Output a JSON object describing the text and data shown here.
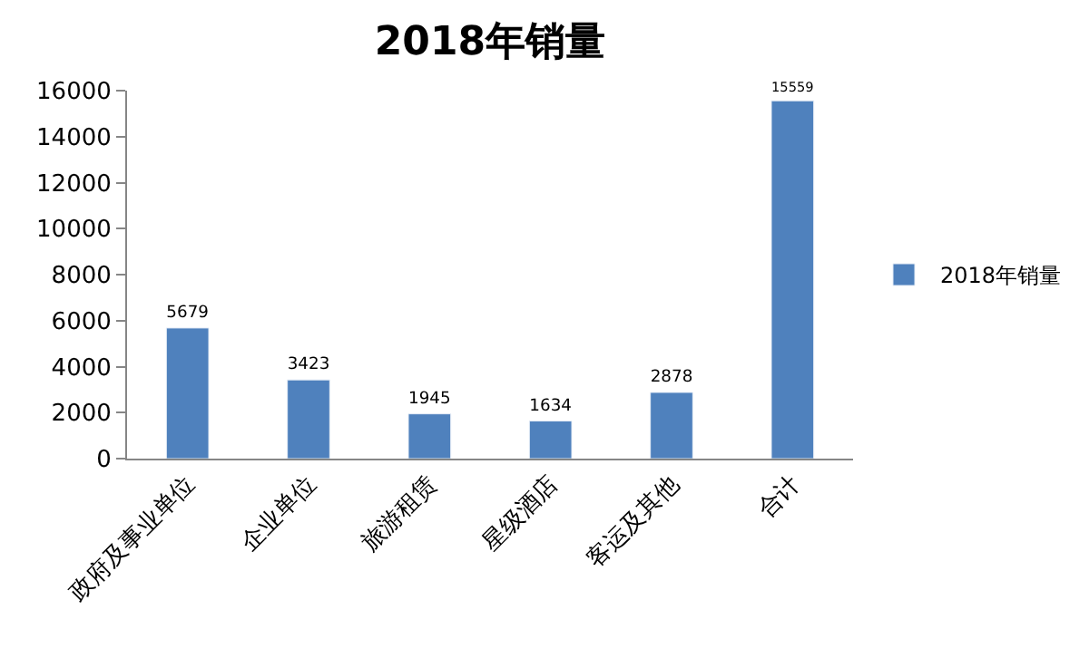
{
  "chart_data": {
    "type": "bar",
    "title": "2018年销量",
    "categories": [
      "政府及事业单位",
      "企业单位",
      "旅游租赁",
      "星级酒店",
      "客运及其他",
      "合计"
    ],
    "series": [
      {
        "name": "2018年销量",
        "color": "#4f81bd",
        "values": [
          5679,
          3423,
          1945,
          1634,
          2878,
          15559
        ]
      }
    ],
    "ylim": [
      0,
      16000
    ],
    "yticks": [
      0,
      2000,
      4000,
      6000,
      8000,
      10000,
      12000,
      14000,
      16000
    ],
    "data_labels": true,
    "legend": "right",
    "grid": false
  }
}
